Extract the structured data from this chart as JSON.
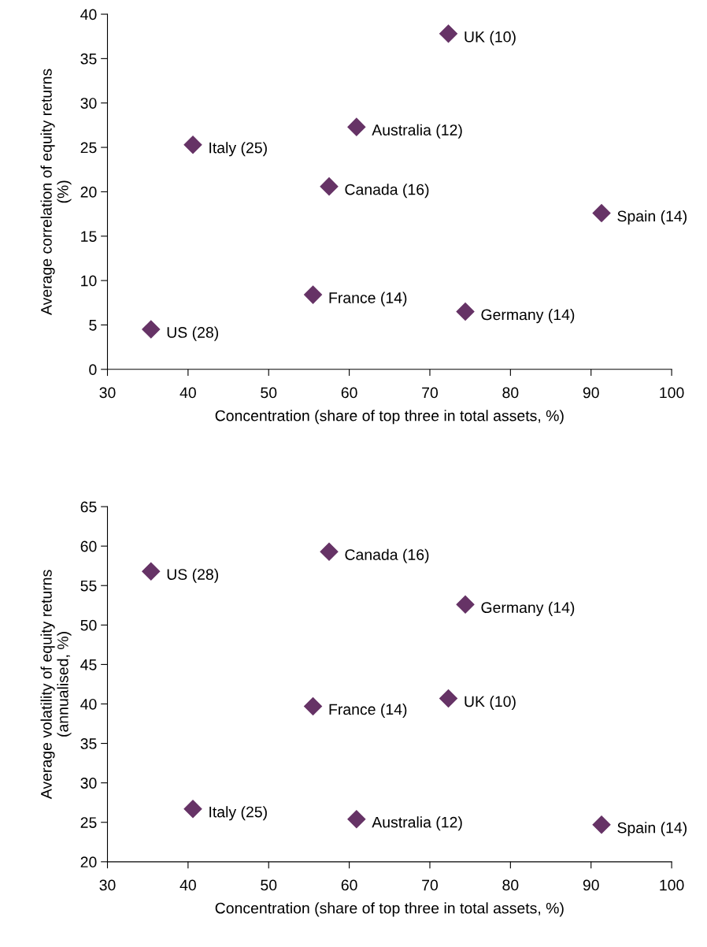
{
  "chart_data": [
    {
      "type": "scatter",
      "xlabel": "Concentration (share of top three in total assets, %)",
      "ylabel": "Average correlation of equity returns\n(%)",
      "x": [
        72.3,
        60.9,
        40.6,
        57.5,
        91.3,
        55.5,
        74.4,
        35.4
      ],
      "series": [
        {
          "color": "#663366",
          "values": [
            37.8,
            27.3,
            25.3,
            20.6,
            17.6,
            8.4,
            6.5,
            4.5
          ]
        }
      ],
      "marker": "diamond",
      "grid": false,
      "xlim": [
        30,
        100
      ],
      "xticks": [
        30,
        40,
        50,
        60,
        70,
        80,
        90,
        100
      ],
      "ylim": [
        0,
        40
      ],
      "yticks": [
        0,
        5,
        10,
        15,
        20,
        25,
        30,
        35,
        40
      ],
      "annotations": [
        {
          "text": "UK (10)",
          "x": 72.3,
          "y": 37.8
        },
        {
          "text": "Australia (12)",
          "x": 60.9,
          "y": 27.3
        },
        {
          "text": "Italy (25)",
          "x": 40.6,
          "y": 25.3
        },
        {
          "text": "Canada (16)",
          "x": 57.5,
          "y": 20.6
        },
        {
          "text": "Spain (14)",
          "x": 91.3,
          "y": 17.6
        },
        {
          "text": "France (14)",
          "x": 55.5,
          "y": 8.4
        },
        {
          "text": "Germany (14)",
          "x": 74.4,
          "y": 6.5
        },
        {
          "text": "US (28)",
          "x": 35.4,
          "y": 4.5
        }
      ]
    },
    {
      "type": "scatter",
      "xlabel": "Concentration (share of top three in total assets, %)",
      "ylabel": "Average volatility of equity returns\n(annualised, %)",
      "x": [
        35.4,
        57.5,
        74.4,
        55.5,
        72.3,
        40.6,
        60.9,
        91.3
      ],
      "series": [
        {
          "color": "#663366",
          "values": [
            56.8,
            59.3,
            52.6,
            39.7,
            40.7,
            26.7,
            25.4,
            24.7
          ]
        }
      ],
      "marker": "diamond",
      "grid": false,
      "xlim": [
        30,
        100
      ],
      "xticks": [
        30,
        40,
        50,
        60,
        70,
        80,
        90,
        100
      ],
      "ylim": [
        20,
        65
      ],
      "yticks": [
        20,
        25,
        30,
        35,
        40,
        45,
        50,
        55,
        60,
        65
      ],
      "annotations": [
        {
          "text": "US (28)",
          "x": 35.4,
          "y": 56.8
        },
        {
          "text": "Canada (16)",
          "x": 57.5,
          "y": 59.3
        },
        {
          "text": "Germany (14)",
          "x": 74.4,
          "y": 52.6
        },
        {
          "text": "France (14)",
          "x": 55.5,
          "y": 39.7
        },
        {
          "text": "UK (10)",
          "x": 72.3,
          "y": 40.7
        },
        {
          "text": "Italy (25)",
          "x": 40.6,
          "y": 26.7
        },
        {
          "text": "Australia (12)",
          "x": 60.9,
          "y": 25.4
        },
        {
          "text": "Spain (14)",
          "x": 91.3,
          "y": 24.7
        }
      ]
    }
  ]
}
